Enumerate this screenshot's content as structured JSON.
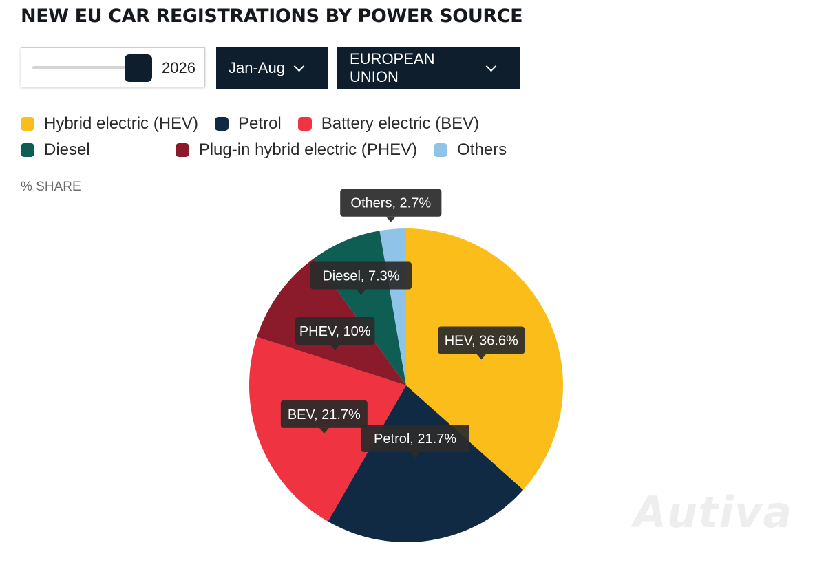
{
  "title": "NEW EU CAR REGISTRATIONS BY POWER SOURCE",
  "controls": {
    "year": "2026",
    "year_slider_position": 0.9,
    "period": "Jan-Aug",
    "region": "EUROPEAN UNION"
  },
  "unit_label": "% SHARE",
  "legend": [
    {
      "label": "Hybrid electric (HEV)",
      "color": "#fbbd19"
    },
    {
      "label": "Petrol",
      "color": "#102a43"
    },
    {
      "label": "Battery electric (BEV)",
      "color": "#ef3340"
    },
    {
      "label": "Diesel",
      "color": "#0f5e54"
    },
    {
      "label": "Plug-in hybrid electric (PHEV)",
      "color": "#8b1a2b"
    },
    {
      "label": "Others",
      "color": "#8fc3e8"
    }
  ],
  "chart_data": {
    "type": "pie",
    "title": "NEW EU CAR REGISTRATIONS BY POWER SOURCE",
    "unit": "% SHARE",
    "start": "12 o'clock, clockwise",
    "slices": [
      {
        "name": "HEV",
        "value": 36.6,
        "label": "HEV, 36.6%",
        "color": "#fbbd19"
      },
      {
        "name": "Petrol",
        "value": 21.7,
        "label": "Petrol, 21.7%",
        "color": "#102a43"
      },
      {
        "name": "BEV",
        "value": 21.7,
        "label": "BEV, 21.7%",
        "color": "#ef3340"
      },
      {
        "name": "PHEV",
        "value": 10,
        "label": "PHEV, 10%",
        "color": "#8b1a2b"
      },
      {
        "name": "Diesel",
        "value": 7.3,
        "label": "Diesel, 7.3%",
        "color": "#0f5e54"
      },
      {
        "name": "Others",
        "value": 2.7,
        "label": "Others, 2.7%",
        "color": "#8fc3e8"
      }
    ]
  },
  "watermark": "Autiva"
}
